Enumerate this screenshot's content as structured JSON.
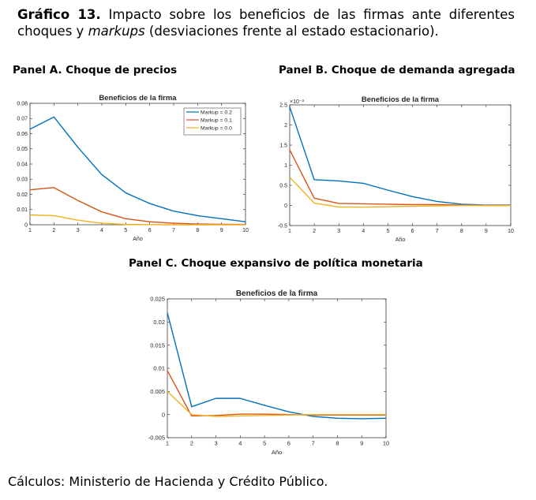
{
  "caption": {
    "label": "Gráfico 13.",
    "text_before": "Impacto sobre los beneficios de las firmas ante diferentes choques y",
    "emphasis": "markups",
    "text_after": "(desviaciones frente al estado estacionario)."
  },
  "source": "Cálculos: Ministerio de Hacienda y Crédito Público.",
  "colors": {
    "markup_02": "#0072BD",
    "markup_01": "#D95319",
    "markup_00": "#EDB120"
  },
  "chart_data": [
    {
      "id": "A",
      "panel_title": "Panel A. Choque de precios",
      "type": "line",
      "title": "Beneficios de la firma",
      "xlabel": "Año",
      "ylabel": "",
      "xlim": [
        1,
        10
      ],
      "ylim": [
        0,
        0.08
      ],
      "x_ticks": [
        1,
        2,
        3,
        4,
        5,
        6,
        7,
        8,
        9,
        10
      ],
      "y_ticks": [
        0,
        0.01,
        0.02,
        0.03,
        0.04,
        0.05,
        0.06,
        0.07,
        0.08
      ],
      "y_tick_labels": [
        "0",
        "0.01",
        "0.02",
        "0.03",
        "0.04",
        "0.05",
        "0.06",
        "0.07",
        "0.08"
      ],
      "multiplier": "",
      "legend": "top-right",
      "x": [
        1,
        2,
        3,
        4,
        5,
        6,
        7,
        8,
        9,
        10
      ],
      "series": [
        {
          "name": "Markup = 0.2",
          "color": "#0072BD",
          "values": [
            0.063,
            0.071,
            0.051,
            0.033,
            0.021,
            0.014,
            0.009,
            0.006,
            0.004,
            0.002
          ]
        },
        {
          "name": "Markup = 0.1",
          "color": "#D95319",
          "values": [
            0.023,
            0.0245,
            0.016,
            0.0085,
            0.004,
            0.002,
            0.001,
            0.0005,
            0.0003,
            0.0002
          ]
        },
        {
          "name": "Markup = 0.0",
          "color": "#EDB120",
          "values": [
            0.0065,
            0.006,
            0.003,
            0.001,
            0.0002,
            0.0001,
            0.0,
            0.0,
            0.0,
            0.0
          ]
        }
      ]
    },
    {
      "id": "B",
      "panel_title": "Panel B. Choque de demanda agregada",
      "type": "line",
      "title": "Beneficios de la firma",
      "xlabel": "Año",
      "ylabel": "",
      "xlim": [
        1,
        10
      ],
      "ylim": [
        -0.5,
        2.5
      ],
      "x_ticks": [
        1,
        2,
        3,
        4,
        5,
        6,
        7,
        8,
        9,
        10
      ],
      "y_ticks": [
        -0.5,
        0,
        0.5,
        1,
        1.5,
        2,
        2.5
      ],
      "y_tick_labels": [
        "-0.5",
        "0",
        "0.5",
        "1",
        "1.5",
        "2",
        "2.5"
      ],
      "multiplier": "×10⁻³",
      "legend": "",
      "x": [
        1,
        2,
        3,
        4,
        5,
        6,
        7,
        8,
        9,
        10
      ],
      "series": [
        {
          "name": "",
          "color": "#0072BD",
          "values": [
            2.45,
            0.64,
            0.61,
            0.55,
            0.38,
            0.22,
            0.1,
            0.03,
            0.01,
            0.01
          ]
        },
        {
          "name": "",
          "color": "#D95319",
          "values": [
            1.38,
            0.18,
            0.05,
            0.04,
            0.03,
            0.02,
            0.02,
            0.01,
            0.0,
            0.0
          ]
        },
        {
          "name": "",
          "color": "#EDB120",
          "values": [
            0.7,
            0.06,
            -0.04,
            -0.04,
            -0.03,
            -0.02,
            -0.01,
            0.0,
            0.0,
            0.0
          ]
        }
      ]
    },
    {
      "id": "C",
      "panel_title": "Panel C. Choque expansivo de política monetaria",
      "type": "line",
      "title": "Beneficios de la firma",
      "xlabel": "Año",
      "ylabel": "",
      "xlim": [
        1,
        10
      ],
      "ylim": [
        -0.005,
        0.025
      ],
      "x_ticks": [
        1,
        2,
        3,
        4,
        5,
        6,
        7,
        8,
        9,
        10
      ],
      "y_ticks": [
        -0.005,
        0,
        0.005,
        0.01,
        0.015,
        0.02,
        0.025
      ],
      "y_tick_labels": [
        "-0.005",
        "0",
        "0.005",
        "0.01",
        "0.015",
        "0.02",
        "0.025"
      ],
      "multiplier": "",
      "legend": "",
      "x": [
        1,
        2,
        3,
        4,
        5,
        6,
        7,
        8,
        9,
        10
      ],
      "series": [
        {
          "name": "",
          "color": "#0072BD",
          "values": [
            0.022,
            0.0017,
            0.0035,
            0.0035,
            0.002,
            0.0006,
            -0.0004,
            -0.0008,
            -0.0009,
            -0.0008
          ]
        },
        {
          "name": "",
          "color": "#D95319",
          "values": [
            0.0095,
            -0.0003,
            -0.0002,
            0.0001,
            0.0001,
            0.0,
            -0.0001,
            -0.0001,
            -0.0001,
            -0.0001
          ]
        },
        {
          "name": "",
          "color": "#EDB120",
          "values": [
            0.005,
            0.0,
            -0.0004,
            -0.0003,
            -0.0002,
            -0.0001,
            0.0,
            0.0,
            0.0,
            0.0
          ]
        }
      ]
    }
  ]
}
